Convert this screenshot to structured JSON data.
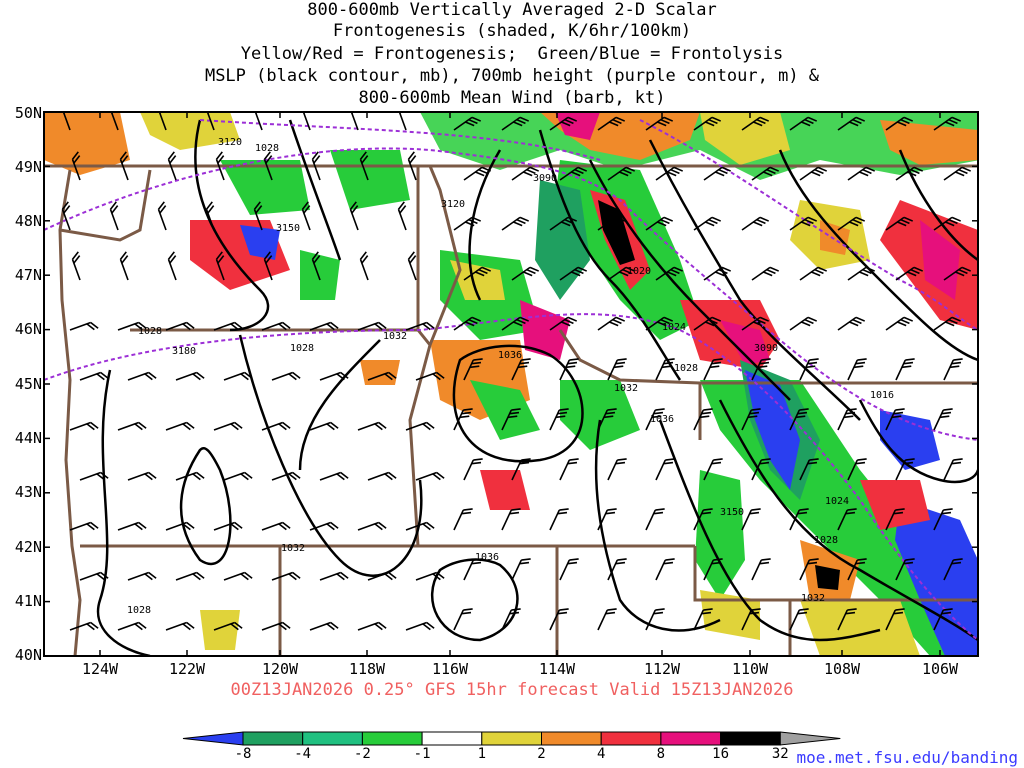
{
  "title": {
    "lines": [
      "800-600mb Vertically Averaged 2-D Scalar",
      "Frontogenesis (shaded, K/6hr/100km)",
      "Yellow/Red = Frontogenesis;  Green/Blue = Frontolysis",
      "MSLP (black contour, mb), 700mb height (purple contour, m) &",
      "800-600mb Mean Wind (barb, kt)"
    ]
  },
  "map": {
    "lat_labels": [
      "50N",
      "49N",
      "48N",
      "47N",
      "46N",
      "45N",
      "44N",
      "43N",
      "42N",
      "41N",
      "40N"
    ],
    "lon_labels": [
      "124W",
      "122W",
      "120W",
      "118W",
      "116W",
      "114W",
      "112W",
      "110W",
      "108W",
      "106W"
    ],
    "mslp_contour_labels": [
      "1028",
      "1028",
      "1028",
      "1032",
      "1036",
      "1020",
      "1024",
      "1028",
      "1032",
      "1036",
      "1016",
      "1024",
      "1028",
      "1032",
      "1036",
      "1028",
      "1032"
    ],
    "height_contour_labels": [
      "3120",
      "3150",
      "3090",
      "3120",
      "3180",
      "3090",
      "3150"
    ],
    "colors": {
      "state_borders": "#7b5a46",
      "mslp_contours": "#000000",
      "height_contours": "#9c2fd6",
      "barbs": "#000000"
    }
  },
  "valid_line": "00Z13JAN2026 0.25° GFS 15hr forecast Valid 15Z13JAN2026",
  "colorbar": {
    "labels": [
      "-8",
      "-4",
      "-2",
      "-1",
      "1",
      "2",
      "4",
      "8",
      "16",
      "32"
    ],
    "colors": [
      "#2a3ff0",
      "#1fa060",
      "#20c080",
      "#27cc3a",
      "#ffffff",
      "#e0d33a",
      "#f08a2a",
      "#f0303e",
      "#e6107c",
      "#000000",
      "#a0a0a0"
    ]
  },
  "credit": "moe.met.fsu.edu/banding"
}
